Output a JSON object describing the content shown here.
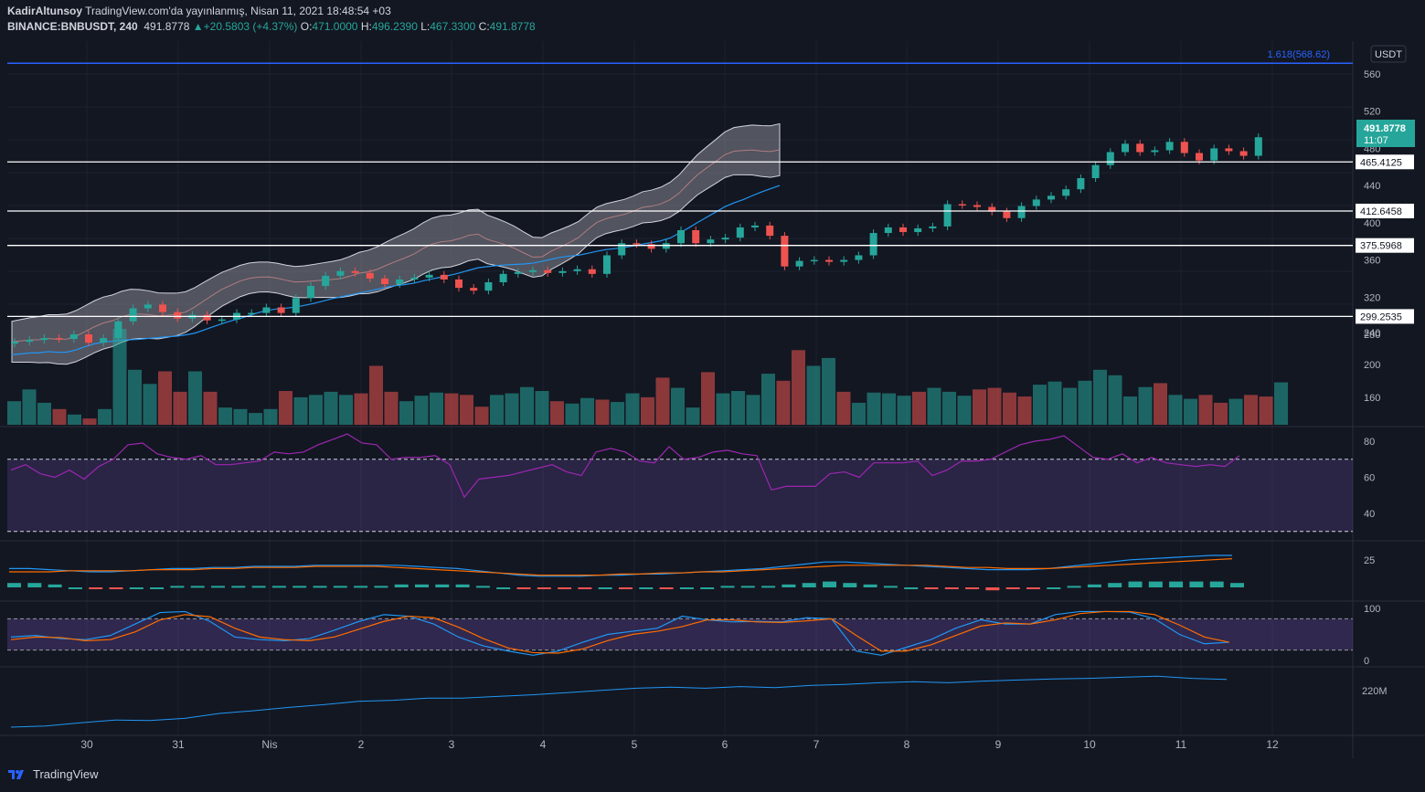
{
  "header": {
    "author": "KadirAltunsoy",
    "published": "TradingView.com'da yayınlanmış, Nisan 11, 2021 18:48:54 +03",
    "symbol": "BINANCE:BNBUSDT, 240",
    "last": "491.8778",
    "arrow": "▲",
    "change": "+20.5803 (+4.37%)",
    "o_label": "O:",
    "o_value": "471.0000",
    "h_label": "H:",
    "h_value": "496.2390",
    "l_label": "L:",
    "l_value": "467.3300",
    "c_label": "C:",
    "c_value": "491.8778"
  },
  "currency": "USDT",
  "fib_label": "1.618(568.62)",
  "price_badge": {
    "value": "491.8778",
    "timer": "11:07"
  },
  "levels": [
    {
      "label": "465.4125",
      "value": 465.4125
    },
    {
      "label": "412.6458",
      "value": 412.6458
    },
    {
      "label": "375.5968",
      "value": 375.5968
    },
    {
      "label": "299.2535",
      "value": 299.2535
    }
  ],
  "fib_level_value": 568.62,
  "price_ticks": [
    "560",
    "520",
    "480",
    "440",
    "400",
    "360",
    "320",
    "280",
    "240",
    "200",
    "160"
  ],
  "rsi_ticks": [
    "80",
    "60",
    "40"
  ],
  "macd_ticks": [
    "25"
  ],
  "stoch_ticks": [
    "100",
    "0"
  ],
  "obv_ticks": [
    "220M"
  ],
  "x_ticks": [
    "30",
    "31",
    "Nis",
    "2",
    "3",
    "4",
    "5",
    "6",
    "7",
    "8",
    "9",
    "10",
    "11",
    "12"
  ],
  "brand": "TradingView",
  "colors": {
    "up": "#26a69a",
    "down": "#ef5350",
    "background": "#131722",
    "fib": "#2962ff",
    "rsi": "#9c27b0",
    "macd": "#2196f3",
    "signal": "#ff6d00"
  },
  "chart_data": [
    {
      "type": "candlestick",
      "title": "BINANCE:BNBUSDT, 240",
      "ylim": [
        240,
        580
      ],
      "ylabel": "USDT",
      "levels": [
        465.4125,
        412.6458,
        375.5968,
        299.2535,
        568.62
      ],
      "closes": [
        272,
        274,
        276,
        275,
        280,
        271,
        276,
        294,
        308,
        312,
        304,
        297,
        301,
        295,
        296,
        303,
        303,
        309,
        303,
        319,
        332,
        343,
        348,
        346,
        340,
        334,
        339,
        341,
        344,
        339,
        330,
        327,
        336,
        345,
        347,
        349,
        346,
        348,
        350,
        345,
        365,
        378,
        377,
        372,
        378,
        392,
        378,
        382,
        384,
        395,
        397,
        386,
        353,
        359,
        360,
        358,
        360,
        365,
        389,
        395,
        390,
        394,
        396,
        420,
        419,
        417,
        412,
        405,
        418,
        425,
        429,
        436,
        448,
        462,
        476,
        485,
        476,
        478,
        487,
        475,
        467,
        480,
        477,
        472,
        492
      ],
      "volumes": [
        150,
        165,
        148,
        140,
        133,
        128,
        140,
        242,
        190,
        172,
        188,
        162,
        188,
        162,
        142,
        140,
        135,
        140,
        163,
        155,
        158,
        162,
        158,
        160,
        195,
        162,
        150,
        157,
        161,
        160,
        158,
        143,
        158,
        160,
        168,
        163,
        150,
        147,
        154,
        152,
        149,
        160,
        155,
        180,
        167,
        142,
        187,
        160,
        163,
        158,
        185,
        176,
        215,
        195,
        205,
        162,
        148,
        161,
        160,
        157,
        162,
        167,
        162,
        157,
        165,
        167,
        161,
        156,
        171,
        175,
        167,
        176,
        190,
        183,
        156,
        168,
        173,
        158,
        153,
        158,
        148,
        153,
        158,
        156,
        174
      ]
    },
    {
      "type": "line",
      "title": "RSI",
      "ylim": [
        30,
        90
      ],
      "values": [
        64,
        67,
        62,
        60,
        64,
        59,
        66,
        70,
        78,
        79,
        73,
        71,
        70,
        72,
        67,
        67,
        68,
        69,
        74,
        73,
        74,
        78,
        81,
        84,
        79,
        78,
        70,
        71,
        71,
        72,
        67,
        49,
        59,
        60,
        61,
        63,
        65,
        67,
        63,
        61,
        74,
        76,
        74,
        69,
        68,
        77,
        70,
        71,
        74,
        75,
        73,
        72,
        53,
        55,
        55,
        55,
        62,
        63,
        60,
        68,
        68,
        68,
        69,
        61,
        64,
        69,
        69,
        70,
        74,
        78,
        80,
        81,
        83,
        77,
        71,
        70,
        73,
        68,
        71,
        68,
        67,
        66,
        67,
        66,
        72
      ]
    },
    {
      "type": "line",
      "title": "MACD",
      "series": [
        {
          "values": [
            18,
            18,
            17,
            16,
            15,
            15,
            16,
            17,
            18,
            18,
            19,
            19,
            20,
            20,
            20,
            21,
            21,
            21,
            21,
            21,
            20,
            19,
            18,
            16,
            14,
            12,
            11,
            11,
            11,
            12,
            12,
            13,
            13,
            14,
            15,
            16,
            17,
            18,
            20,
            22,
            24,
            24,
            23,
            22,
            21,
            20,
            19,
            18,
            17,
            17,
            17,
            18,
            20,
            22,
            24,
            26,
            27,
            28,
            29,
            30,
            30
          ]
        },
        {
          "values": [
            15,
            15,
            15,
            16,
            16,
            16,
            16,
            17,
            17,
            17,
            18,
            18,
            19,
            19,
            19,
            20,
            20,
            20,
            20,
            19,
            18,
            17,
            16,
            15,
            14,
            13,
            12,
            12,
            12,
            12,
            13,
            13,
            14,
            14,
            15,
            15,
            16,
            17,
            18,
            19,
            20,
            21,
            21,
            21,
            21,
            21,
            20,
            19,
            19,
            18,
            18,
            18,
            19,
            20,
            21,
            22,
            23,
            24,
            25,
            26,
            27
          ]
        }
      ]
    },
    {
      "type": "line",
      "title": "Stoch",
      "ylim": [
        0,
        100
      ],
      "series": [
        {
          "values": [
            45,
            48,
            42,
            40,
            48,
            70,
            92,
            94,
            75,
            45,
            40,
            38,
            42,
            58,
            75,
            88,
            85,
            70,
            45,
            28,
            18,
            10,
            18,
            35,
            50,
            56,
            62,
            85,
            78,
            74,
            75,
            74,
            82,
            80,
            18,
            10,
            25,
            40,
            62,
            78,
            70,
            70,
            88,
            94,
            94,
            93,
            80,
            50,
            32,
            35
          ]
        },
        {
          "values": [
            40,
            45,
            44,
            38,
            40,
            55,
            78,
            88,
            84,
            62,
            45,
            40,
            38,
            45,
            60,
            75,
            85,
            82,
            64,
            42,
            24,
            15,
            14,
            22,
            38,
            50,
            56,
            65,
            78,
            78,
            74,
            73,
            76,
            80,
            48,
            18,
            18,
            30,
            48,
            66,
            72,
            70,
            78,
            90,
            94,
            94,
            88,
            68,
            45,
            35
          ]
        }
      ]
    },
    {
      "type": "line",
      "title": "OBV",
      "values": [
        140,
        142,
        148,
        153,
        152,
        156,
        165,
        170,
        176,
        181,
        187,
        189,
        193,
        193,
        196,
        199,
        203,
        207,
        211,
        213,
        211,
        214,
        212,
        216,
        218,
        221,
        223,
        221,
        224,
        226,
        228,
        229,
        231,
        233,
        229,
        227
      ]
    }
  ]
}
